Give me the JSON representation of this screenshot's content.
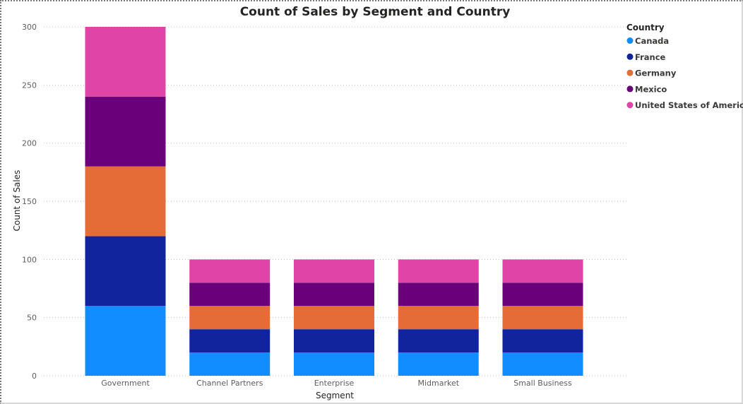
{
  "chart_data": {
    "type": "bar",
    "stacked": true,
    "title": "Count of Sales by Segment and Country",
    "xlabel": "Segment",
    "ylabel": "Count of Sales",
    "ylim": [
      0,
      300
    ],
    "yticks": [
      0,
      50,
      100,
      150,
      200,
      250,
      300
    ],
    "grid": true,
    "legend": {
      "title": "Country",
      "position": "right"
    },
    "categories": [
      "Government",
      "Channel Partners",
      "Enterprise",
      "Midmarket",
      "Small Business"
    ],
    "series": [
      {
        "name": "Canada",
        "color": "#118dff",
        "values": [
          60,
          20,
          20,
          20,
          20
        ]
      },
      {
        "name": "France",
        "color": "#12239e",
        "values": [
          60,
          20,
          20,
          20,
          20
        ]
      },
      {
        "name": "Germany",
        "color": "#e66c37",
        "values": [
          60,
          20,
          20,
          20,
          20
        ]
      },
      {
        "name": "Mexico",
        "color": "#6b007b",
        "values": [
          60,
          20,
          20,
          20,
          20
        ]
      },
      {
        "name": "United States of America",
        "color": "#e044a7",
        "values": [
          60,
          20,
          20,
          20,
          20
        ]
      }
    ]
  }
}
